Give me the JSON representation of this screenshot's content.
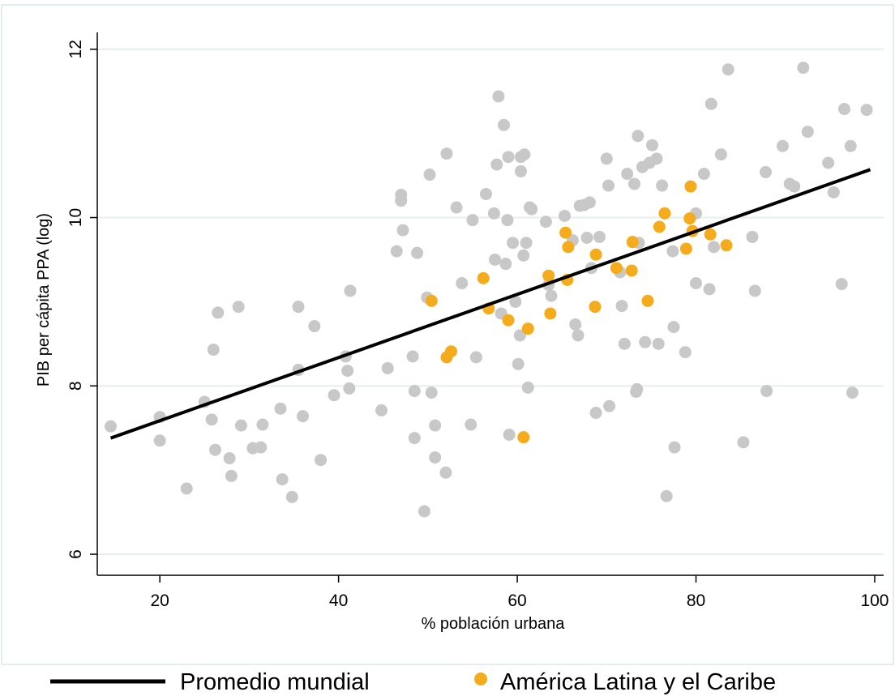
{
  "chart_data": {
    "type": "scatter",
    "xlabel": "% población urbana",
    "ylabel": "PIB per cápita PPA (log)",
    "xlim": [
      13,
      101
    ],
    "ylim": [
      5.75,
      12.2
    ],
    "x_ticks": [
      "20",
      "40",
      "60",
      "80",
      "100"
    ],
    "y_ticks": [
      "6",
      "8",
      "10",
      "12"
    ],
    "grid": "horizontal",
    "legend_position": "bottom",
    "colors": {
      "world_points": "#c8c8c8",
      "latam_points": "#f5ac1c",
      "trend_line": "#000000",
      "grid": "#e6eef0",
      "frame": "#e3ecee"
    },
    "series": [
      {
        "name": "Promedio mundial",
        "kind": "line",
        "x": [
          14.5,
          99.5
        ],
        "y": [
          7.38,
          10.57
        ]
      },
      {
        "kind": "scatter",
        "points": [
          [
            14.5,
            7.52
          ],
          [
            20,
            7.35
          ],
          [
            20,
            7.63
          ],
          [
            23,
            6.78
          ],
          [
            25,
            7.81
          ],
          [
            25.8,
            7.6
          ],
          [
            26,
            8.43
          ],
          [
            26.2,
            7.24
          ],
          [
            26.5,
            8.87
          ],
          [
            27.8,
            7.14
          ],
          [
            28,
            6.93
          ],
          [
            28.8,
            8.94
          ],
          [
            29.1,
            7.53
          ],
          [
            30.4,
            7.26
          ],
          [
            31.3,
            7.27
          ],
          [
            31.5,
            7.54
          ],
          [
            33.5,
            7.73
          ],
          [
            33.7,
            6.89
          ],
          [
            34.8,
            6.68
          ],
          [
            35.5,
            8.19
          ],
          [
            35.5,
            8.94
          ],
          [
            36,
            7.64
          ],
          [
            37.3,
            8.71
          ],
          [
            38,
            7.12
          ],
          [
            39.5,
            7.89
          ],
          [
            40.8,
            8.35
          ],
          [
            41,
            8.18
          ],
          [
            41.2,
            7.97
          ],
          [
            41.3,
            9.13
          ],
          [
            44.8,
            7.71
          ],
          [
            45.5,
            8.21
          ],
          [
            46.5,
            9.6
          ],
          [
            47,
            10.27
          ],
          [
            47,
            10.2
          ],
          [
            47.2,
            9.85
          ],
          [
            48.3,
            8.35
          ],
          [
            48.5,
            7.38
          ],
          [
            48.5,
            7.94
          ],
          [
            48.8,
            9.58
          ],
          [
            49.6,
            6.51
          ],
          [
            49.9,
            9.05
          ],
          [
            50.2,
            10.51
          ],
          [
            50.4,
            7.92
          ],
          [
            50.8,
            7.53
          ],
          [
            50.8,
            7.15
          ],
          [
            52,
            6.97
          ],
          [
            52.1,
            10.76
          ],
          [
            53.2,
            10.12
          ],
          [
            53.8,
            9.22
          ],
          [
            55,
            9.97
          ],
          [
            55.4,
            8.34
          ],
          [
            54.8,
            7.54
          ],
          [
            56.5,
            10.28
          ],
          [
            57.4,
            10.05
          ],
          [
            57.5,
            9.5
          ],
          [
            57.7,
            10.63
          ],
          [
            57.9,
            11.44
          ],
          [
            58.2,
            8.86
          ],
          [
            58.5,
            11.1
          ],
          [
            58.7,
            9.45
          ],
          [
            58.9,
            9.97
          ],
          [
            59,
            10.72
          ],
          [
            59.1,
            7.42
          ],
          [
            59.5,
            9.7
          ],
          [
            59.8,
            9
          ],
          [
            60.1,
            8.26
          ],
          [
            60.3,
            8.6
          ],
          [
            60.4,
            10.72
          ],
          [
            60.4,
            10.55
          ],
          [
            60.7,
            9.55
          ],
          [
            60.8,
            10.75
          ],
          [
            61,
            9.7
          ],
          [
            61.2,
            7.98
          ],
          [
            61.4,
            10.12
          ],
          [
            61.6,
            10.1
          ],
          [
            63.2,
            9.95
          ],
          [
            63.5,
            9.2
          ],
          [
            63.8,
            9.07
          ],
          [
            65.3,
            10.02
          ],
          [
            66.2,
            9.73
          ],
          [
            66.5,
            8.73
          ],
          [
            66.8,
            8.6
          ],
          [
            67,
            10.14
          ],
          [
            67.5,
            10.15
          ],
          [
            67.8,
            9.76
          ],
          [
            68.1,
            10.18
          ],
          [
            68.3,
            9.4
          ],
          [
            68.8,
            7.68
          ],
          [
            69.2,
            9.77
          ],
          [
            70,
            10.7
          ],
          [
            70.2,
            10.38
          ],
          [
            70.3,
            7.76
          ],
          [
            71.5,
            9.35
          ],
          [
            71.7,
            8.95
          ],
          [
            72,
            8.5
          ],
          [
            72.3,
            10.52
          ],
          [
            73.1,
            10.4
          ],
          [
            73.3,
            7.93
          ],
          [
            73.4,
            7.96
          ],
          [
            73.5,
            10.97
          ],
          [
            73.6,
            9.7
          ],
          [
            74,
            10.6
          ],
          [
            74.3,
            8.52
          ],
          [
            74.8,
            10.65
          ],
          [
            75.1,
            10.86
          ],
          [
            75.6,
            10.7
          ],
          [
            75.8,
            8.5
          ],
          [
            76.2,
            10.38
          ],
          [
            76.7,
            6.69
          ],
          [
            77.4,
            9.6
          ],
          [
            77.5,
            8.7
          ],
          [
            77.6,
            7.27
          ],
          [
            78.8,
            8.4
          ],
          [
            80,
            10.05
          ],
          [
            80,
            9.22
          ],
          [
            80.9,
            10.52
          ],
          [
            81.5,
            9.15
          ],
          [
            81.7,
            11.35
          ],
          [
            82,
            9.65
          ],
          [
            82.8,
            10.75
          ],
          [
            83.6,
            11.76
          ],
          [
            85.3,
            7.33
          ],
          [
            86.3,
            9.77
          ],
          [
            86.6,
            9.13
          ],
          [
            87.8,
            10.54
          ],
          [
            87.9,
            7.94
          ],
          [
            89.7,
            10.85
          ],
          [
            90.5,
            10.4
          ],
          [
            91,
            10.37
          ],
          [
            92,
            11.78
          ],
          [
            92.5,
            11.02
          ],
          [
            94.8,
            10.65
          ],
          [
            95.4,
            10.3
          ],
          [
            96.3,
            9.21
          ],
          [
            96.6,
            11.29
          ],
          [
            97.3,
            10.85
          ],
          [
            97.5,
            7.92
          ],
          [
            99.1,
            11.28
          ]
        ]
      },
      {
        "name": "América Latina y el Caribe",
        "kind": "scatter",
        "points": [
          [
            50.4,
            9.01
          ],
          [
            52.1,
            8.34
          ],
          [
            52.6,
            8.41
          ],
          [
            56.2,
            9.28
          ],
          [
            56.8,
            8.92
          ],
          [
            59,
            8.78
          ],
          [
            61.2,
            8.68
          ],
          [
            63.5,
            9.31
          ],
          [
            63.7,
            8.86
          ],
          [
            65.4,
            9.82
          ],
          [
            65.6,
            9.26
          ],
          [
            65.7,
            9.65
          ],
          [
            68.7,
            8.94
          ],
          [
            68.8,
            9.56
          ],
          [
            71.1,
            9.4
          ],
          [
            72.8,
            9.37
          ],
          [
            72.9,
            9.71
          ],
          [
            74.6,
            9.01
          ],
          [
            75.9,
            9.89
          ],
          [
            76.5,
            10.05
          ],
          [
            78.9,
            9.63
          ],
          [
            79.3,
            9.99
          ],
          [
            79.4,
            10.37
          ],
          [
            79.6,
            9.84
          ],
          [
            81.6,
            9.8
          ],
          [
            83.4,
            9.67
          ],
          [
            60.7,
            7.39
          ]
        ]
      }
    ]
  }
}
